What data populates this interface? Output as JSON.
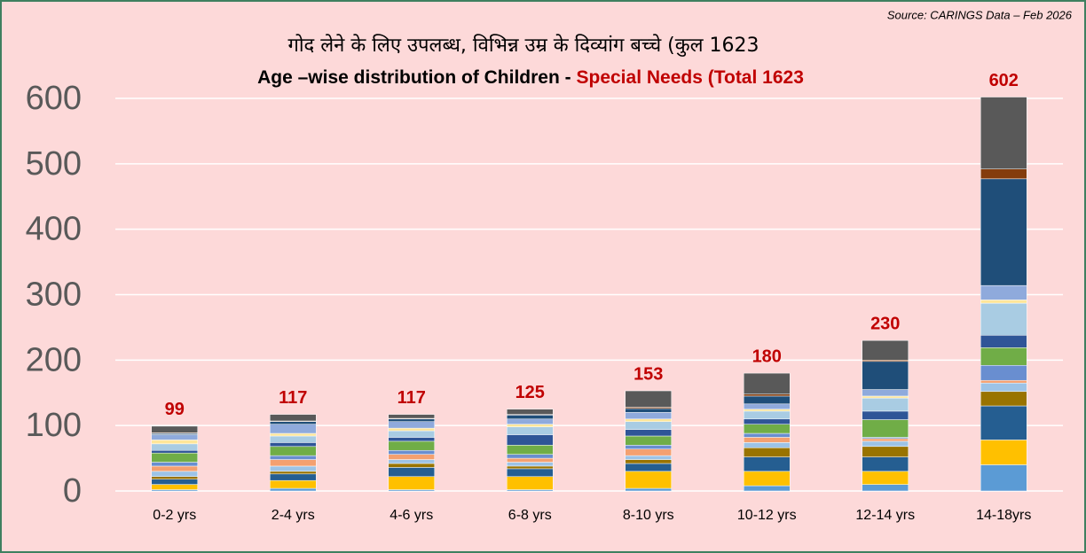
{
  "chart_data": {
    "type": "stacked_bar",
    "source": "Source: CARINGS Data –  Feb 2026",
    "title": "गोद लेने के लिए उपलब्ध, विभिन्न उम्र के दिव्यांग बच्चे (कुल 1623",
    "subtitle": [
      "Age –wise distribution of Children  - ",
      "Special Needs (Total 1623"
    ],
    "categories": [
      "0-2 yrs",
      "2-4 yrs",
      "4-6 yrs",
      "6-8 yrs",
      "8-10 yrs",
      "10-12 yrs",
      "12-14 yrs",
      "14-18yrs"
    ],
    "totals": [
      99,
      117,
      117,
      125,
      153,
      180,
      230,
      602
    ],
    "series": [
      {
        "color": "#5b9bd5",
        "values": [
          2,
          4,
          2,
          2,
          4,
          8,
          10,
          40
        ]
      },
      {
        "color": "#ffc000",
        "values": [
          8,
          12,
          20,
          20,
          26,
          22,
          20,
          38
        ]
      },
      {
        "color": "#255e91",
        "values": [
          8,
          10,
          14,
          12,
          12,
          22,
          22,
          52
        ]
      },
      {
        "color": "#997300",
        "values": [
          4,
          4,
          6,
          4,
          6,
          14,
          16,
          22
        ]
      },
      {
        "color": "#9dc3e6",
        "values": [
          8,
          8,
          6,
          6,
          6,
          8,
          8,
          13
        ]
      },
      {
        "color": "#f4a070",
        "values": [
          8,
          10,
          8,
          6,
          10,
          8,
          4,
          4
        ]
      },
      {
        "color": "#698ed0",
        "values": [
          6,
          6,
          6,
          6,
          6,
          6,
          2,
          23
        ]
      },
      {
        "color": "#70ad47",
        "values": [
          14,
          14,
          14,
          14,
          14,
          14,
          27,
          27
        ]
      },
      {
        "color": "#2f5597",
        "values": [
          4,
          6,
          6,
          16,
          10,
          8,
          13,
          19
        ]
      },
      {
        "color": "#a9cce3",
        "values": [
          10,
          10,
          10,
          12,
          12,
          12,
          20,
          49
        ]
      },
      {
        "color": "#ffe699",
        "values": [
          6,
          4,
          4,
          4,
          4,
          3,
          3,
          5
        ]
      },
      {
        "color": "#8faadc",
        "values": [
          8,
          14,
          10,
          8,
          10,
          8,
          10,
          22
        ]
      },
      {
        "color": "#1f4e79",
        "values": [
          2,
          4,
          4,
          6,
          6,
          12,
          43,
          163
        ]
      },
      {
        "color": "#843c0c",
        "values": [
          1,
          1,
          1,
          1,
          2,
          3,
          2,
          15
        ]
      },
      {
        "color": "#595959",
        "values": [
          10,
          10,
          6,
          8,
          25,
          32,
          30,
          110
        ]
      }
    ],
    "ylim": [
      0,
      600
    ],
    "yticks": [
      0,
      100,
      200,
      300,
      400,
      500,
      600
    ],
    "grid": true
  }
}
